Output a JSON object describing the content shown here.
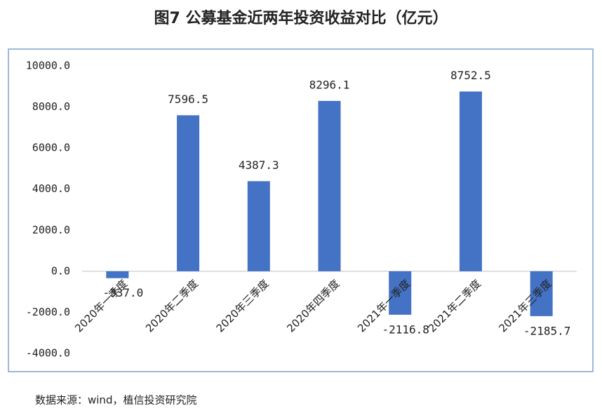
{
  "chart_data": {
    "type": "bar",
    "title": "图7 公募基金近两年投资收益对比（亿元）",
    "categories": [
      "2020年一季度",
      "2020年二季度",
      "2020年三季度",
      "2020年四季度",
      "2021年一季度",
      "2021年二季度",
      "2021年三季度"
    ],
    "values": [
      -337.0,
      7596.5,
      4387.3,
      8296.1,
      -2116.8,
      8752.5,
      -2185.7
    ],
    "value_labels": [
      "-337.0",
      "7596.5",
      "4387.3",
      "8296.1",
      "-2116.8",
      "8752.5",
      "-2185.7"
    ],
    "color": "#4472c4",
    "ylim": [
      -4000,
      10000
    ],
    "yticks": [
      {
        "value": -4000,
        "label": "-4000.0"
      },
      {
        "value": -2000,
        "label": "-2000.0"
      },
      {
        "value": 0,
        "label": "0.0"
      },
      {
        "value": 2000,
        "label": "2000.0"
      },
      {
        "value": 4000,
        "label": "4000.0"
      },
      {
        "value": 6000,
        "label": "6000.0"
      },
      {
        "value": 8000,
        "label": "8000.0"
      },
      {
        "value": 10000,
        "label": "10000.0"
      }
    ]
  },
  "source": "数据来源：wind，植信投资研究院"
}
